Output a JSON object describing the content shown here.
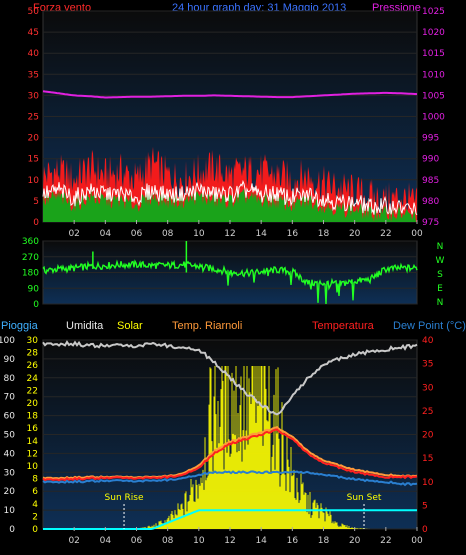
{
  "header": {
    "left_label": "Forza vento",
    "title": "24 hour graph day: 31 Maggio 2013",
    "right_label": "Pressione"
  },
  "mid_panel": {
    "compass": [
      "N",
      "W",
      "S",
      "E",
      "N"
    ]
  },
  "bottom_header": {
    "rain": "Pioggia",
    "humidity": "Umidita",
    "solar": "Solar",
    "heat_index": "Temp. Riarnoli",
    "temperature": "Temperatura",
    "dewpoint": "Dew Point (°C)"
  },
  "annotations": {
    "sunrise": "Sun Rise",
    "sunset": "Sun Set"
  },
  "colors": {
    "wind_gust": "#ff1a1a",
    "wind_avg": "#1aa31a",
    "wind_line": "#ffffff",
    "pressure": "#e020e0",
    "direction": "#22ff22",
    "humidity": "#c8c8c8",
    "solar": "#ffff00",
    "temperature": "#ff2020",
    "dewpoint": "#2a7fd0",
    "heat_index": "#ff9a3a",
    "rain": "#00ffff",
    "panel_bg": "#0e2f55"
  },
  "chart_data": [
    {
      "type": "line",
      "name": "wind-pressure",
      "x_ticks": [
        "02",
        "04",
        "06",
        "08",
        "10",
        "12",
        "14",
        "16",
        "18",
        "20",
        "22",
        "00"
      ],
      "y_left_ticks": [
        0,
        5,
        10,
        15,
        20,
        25,
        30,
        35,
        40,
        45,
        50
      ],
      "y_right_ticks": [
        975,
        980,
        985,
        990,
        995,
        1000,
        1005,
        1010,
        1015,
        1020,
        1025
      ],
      "ylim_left": [
        0,
        50
      ],
      "ylim_right": [
        975,
        1025
      ],
      "x_hours": [
        0,
        1,
        2,
        3,
        4,
        5,
        6,
        7,
        8,
        9,
        10,
        11,
        12,
        13,
        14,
        15,
        16,
        17,
        18,
        19,
        20,
        21,
        22,
        23,
        24
      ],
      "series": [
        {
          "name": "Forza vento",
          "values": [
            11,
            12,
            10,
            13,
            11,
            12,
            10,
            14,
            11,
            10,
            12,
            13,
            11,
            12,
            12,
            11,
            10,
            11,
            9,
            8,
            7,
            6,
            5,
            6,
            4
          ]
        },
        {
          "name": "Pressione",
          "values": [
            1006,
            1005.5,
            1005,
            1004.8,
            1004.5,
            1004.6,
            1004.7,
            1004.7,
            1004.8,
            1004.9,
            1004.9,
            1005,
            1004.9,
            1004.8,
            1004.7,
            1004.6,
            1004.6,
            1004.8,
            1005,
            1005.2,
            1005.4,
            1005.5,
            1005.6,
            1005.5,
            1005.3
          ]
        }
      ],
      "avg_wind": [
        5,
        6,
        4,
        6,
        5,
        5,
        4,
        6,
        5,
        5,
        6,
        5,
        5,
        6,
        5,
        5,
        4,
        5,
        4,
        3,
        3,
        2,
        2,
        2,
        1
      ]
    },
    {
      "type": "scatter",
      "name": "wind-direction",
      "y_ticks": [
        0,
        90,
        180,
        270,
        360
      ],
      "ylim": [
        0,
        360
      ],
      "x_hours": [
        0,
        1,
        2,
        3,
        4,
        5,
        6,
        7,
        8,
        9,
        10,
        11,
        12,
        13,
        14,
        15,
        16,
        17,
        18,
        19,
        20,
        21,
        22,
        23,
        24
      ],
      "values": [
        190,
        200,
        205,
        215,
        220,
        225,
        225,
        220,
        220,
        225,
        215,
        200,
        185,
        175,
        185,
        195,
        185,
        120,
        120,
        115,
        130,
        140,
        200,
        205,
        205
      ]
    },
    {
      "type": "line",
      "name": "temp-hum-solar",
      "y_left_ticks": [
        0,
        10,
        20,
        30,
        40,
        50,
        60,
        70,
        80,
        90,
        100
      ],
      "y_left2_ticks": [
        0,
        2,
        4,
        6,
        8,
        10,
        12,
        14,
        16,
        18,
        20,
        22,
        24,
        26,
        28,
        30
      ],
      "y_right_ticks": [
        0,
        5,
        10,
        15,
        20,
        25,
        30,
        35,
        40
      ],
      "ylim_left": [
        0,
        100
      ],
      "ylim_right": [
        0,
        40
      ],
      "x_hours": [
        0,
        1,
        2,
        3,
        4,
        5,
        6,
        7,
        8,
        9,
        10,
        11,
        12,
        13,
        14,
        15,
        16,
        17,
        18,
        19,
        20,
        21,
        22,
        23,
        24
      ],
      "series": [
        {
          "name": "Umidita",
          "values": [
            98,
            98,
            98,
            97,
            97,
            97,
            97,
            98,
            97,
            96,
            95,
            88,
            80,
            72,
            66,
            60,
            70,
            80,
            87,
            90,
            92,
            94,
            95,
            96,
            97
          ]
        },
        {
          "name": "Temperatura",
          "values": [
            10.5,
            10.5,
            10.6,
            10.7,
            10.8,
            10.8,
            10.8,
            10.8,
            11,
            11.5,
            13,
            16,
            18,
            19,
            20,
            21,
            19,
            16,
            14,
            13,
            12,
            11.5,
            11,
            11,
            11
          ]
        },
        {
          "name": "Dew Point (°C)",
          "values": [
            10,
            10,
            10,
            10.1,
            10.2,
            10.2,
            10.2,
            10.2,
            10.4,
            10.8,
            11.5,
            12,
            12,
            12,
            12,
            12,
            12,
            12,
            11.5,
            11,
            10.5,
            10.2,
            10,
            9.5,
            9.5
          ]
        },
        {
          "name": "Temp. Riarnoli",
          "values": [
            10.8,
            10.8,
            10.9,
            11,
            11,
            11,
            11,
            11,
            11.2,
            11.8,
            13.5,
            16.5,
            18.5,
            19.5,
            20.5,
            21.5,
            19.5,
            16.5,
            14.5,
            13.5,
            12.5,
            12,
            11.5,
            11.2,
            11.2
          ]
        }
      ],
      "solar": [
        0,
        0,
        0,
        0,
        0,
        0,
        0.5,
        3,
        10,
        25,
        60,
        150,
        160,
        145,
        160,
        130,
        60,
        30,
        20,
        5,
        1,
        0,
        0,
        0,
        0
      ],
      "rain": [
        0,
        0,
        0,
        0,
        0,
        0,
        0,
        0,
        1,
        2,
        3,
        3,
        3,
        3,
        3,
        3,
        3,
        3,
        3,
        3,
        3,
        3,
        3,
        3,
        3
      ]
    }
  ]
}
